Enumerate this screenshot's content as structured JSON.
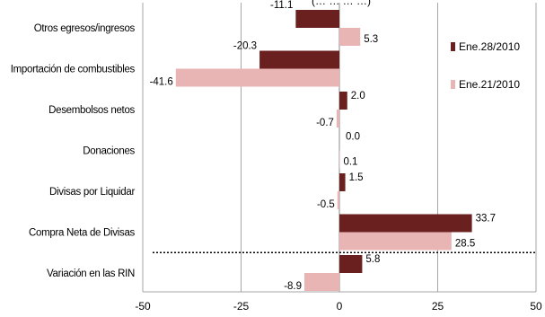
{
  "chart_data": {
    "type": "bar",
    "orientation": "horizontal",
    "title_fragment": "(… … … …)",
    "categories": [
      "Otros egresos/ingresos",
      "Importación de combustibles",
      "Desembolsos netos",
      "Donaciones",
      "Divisas por Liquidar",
      "Compra Neta de Divisas",
      "Variación en las RIN"
    ],
    "series": [
      {
        "name": "Ene.28/2010",
        "color": "#6b2020",
        "values": [
          -11.1,
          -20.3,
          2.0,
          0.0,
          1.5,
          33.7,
          5.8
        ]
      },
      {
        "name": "Ene.21/2010",
        "color": "#e8b4b4",
        "values": [
          5.3,
          -41.6,
          -0.7,
          0.1,
          -0.5,
          28.5,
          -8.9
        ]
      }
    ],
    "xlim": [
      -50,
      50
    ],
    "xticks": [
      -50,
      -25,
      0,
      25,
      50
    ],
    "grid": "vertical",
    "legend_position": "right"
  }
}
